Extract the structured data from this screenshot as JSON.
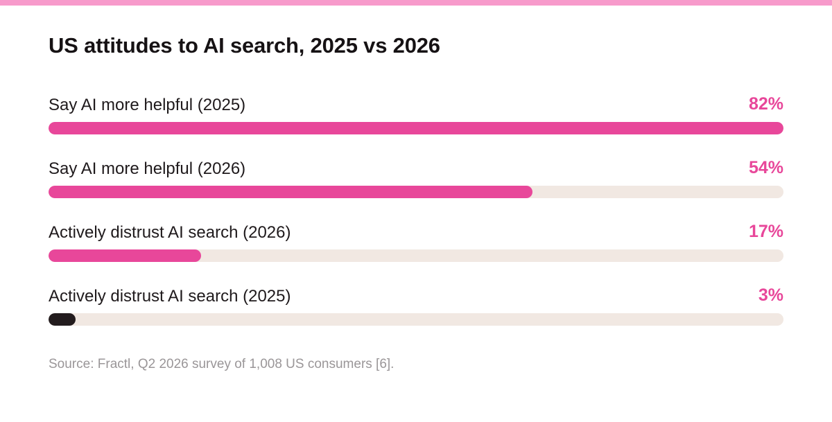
{
  "title": "US attitudes to AI search, 2025 vs 2026",
  "source": "Source: Fractl, Q2 2026 survey of 1,008 US consumers [6].",
  "colors": {
    "accent": "#e8479a",
    "dark": "#231c1e",
    "track": "#f1e8e2",
    "top_bar": "#f79acb"
  },
  "chart_data": {
    "type": "bar",
    "orientation": "horizontal",
    "unit": "%",
    "scale_max": 82,
    "bars": [
      {
        "label": "Say AI more helpful (2025)",
        "value": 82,
        "display": "82%",
        "color": "#e8479a"
      },
      {
        "label": "Say AI more helpful (2026)",
        "value": 54,
        "display": "54%",
        "color": "#e8479a"
      },
      {
        "label": "Actively distrust AI search (2026)",
        "value": 17,
        "display": "17%",
        "color": "#e8479a"
      },
      {
        "label": "Actively distrust AI search (2025)",
        "value": 3,
        "display": "3%",
        "color": "#231c1e"
      }
    ]
  }
}
